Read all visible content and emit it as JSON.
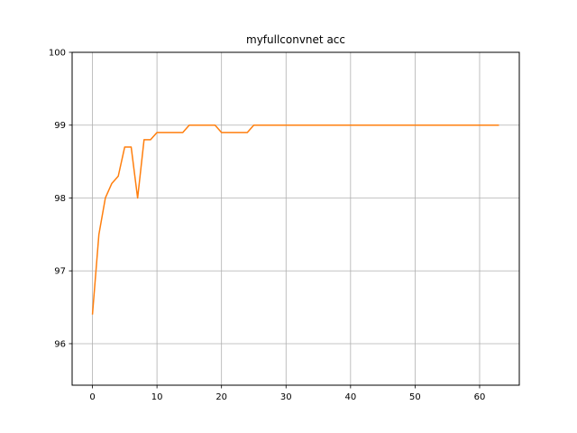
{
  "chart_data": {
    "type": "line",
    "title": "myfullconvnet acc",
    "xlabel": "",
    "ylabel": "",
    "xlim": [
      -3.15,
      66.15
    ],
    "ylim": [
      95.43,
      100.0
    ],
    "xticks": [
      0,
      10,
      20,
      30,
      40,
      50,
      60
    ],
    "yticks": [
      96,
      97,
      98,
      99,
      100
    ],
    "grid": true,
    "line_color": "#ff7f0e",
    "series": [
      {
        "x": [
          0,
          1,
          2,
          3,
          4,
          5,
          6,
          7,
          8,
          9,
          10,
          11,
          12,
          13,
          14,
          15,
          16,
          17,
          18,
          19,
          20,
          21,
          22,
          23,
          24,
          25,
          26,
          27,
          28,
          29,
          30,
          31,
          32,
          33,
          34,
          35,
          36,
          37,
          38,
          39,
          40,
          41,
          42,
          43,
          44,
          45,
          46,
          47,
          48,
          49,
          50,
          51,
          52,
          53,
          54,
          55,
          56,
          57,
          58,
          59,
          60,
          61,
          62,
          63
        ],
        "values": [
          96.4,
          97.5,
          98.0,
          98.2,
          98.3,
          98.7,
          98.7,
          98.0,
          98.8,
          98.8,
          98.9,
          98.9,
          98.9,
          98.9,
          98.9,
          99.0,
          99.0,
          99.0,
          99.0,
          99.0,
          98.9,
          98.9,
          98.9,
          98.9,
          98.9,
          99.0,
          99.0,
          99.0,
          99.0,
          99.0,
          99.0,
          99.0,
          99.0,
          99.0,
          99.0,
          99.0,
          99.0,
          99.0,
          99.0,
          99.0,
          99.0,
          99.0,
          99.0,
          99.0,
          99.0,
          99.0,
          99.0,
          99.0,
          99.0,
          99.0,
          99.0,
          99.0,
          99.0,
          99.0,
          99.0,
          99.0,
          99.0,
          99.0,
          99.0,
          99.0,
          99.0,
          99.0,
          99.0,
          99.0
        ]
      }
    ]
  }
}
